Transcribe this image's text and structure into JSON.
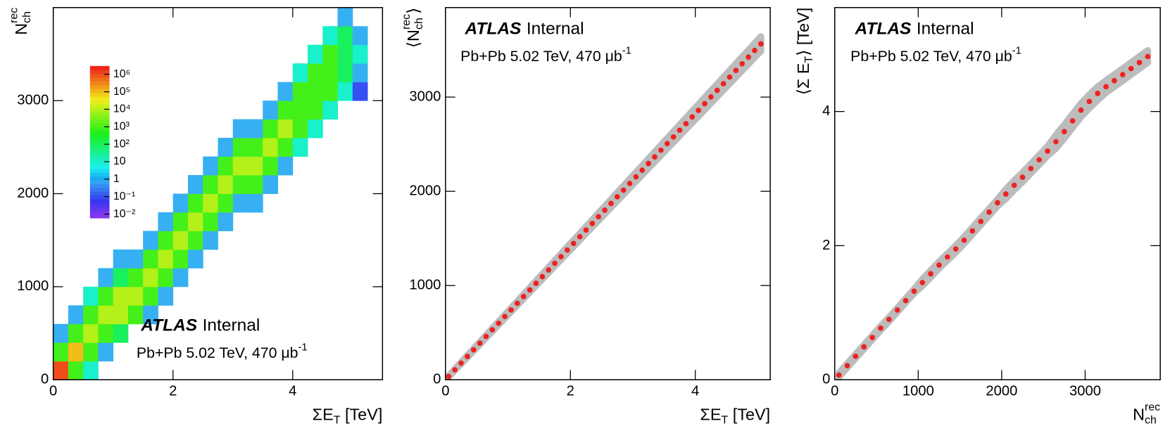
{
  "chart_data": [
    {
      "type": "hist2d",
      "xlabel": [
        {
          "t": "ΣE"
        },
        {
          "sub": "T"
        },
        {
          "t": " [TeV]"
        }
      ],
      "ylabel": [
        {
          "t": "N"
        },
        {
          "sup": "rec",
          "sub": "ch"
        }
      ],
      "xlim": [
        0,
        5.5
      ],
      "xticks": [
        0,
        2,
        4
      ],
      "ylim": [
        0,
        4000
      ],
      "yticks": [
        0,
        1000,
        2000,
        3000
      ],
      "x_bins": [
        0,
        0.25,
        0.5,
        0.75,
        1,
        1.25,
        1.5,
        1.75,
        2,
        2.25,
        2.5,
        2.75,
        3,
        3.25,
        3.5,
        3.75,
        4,
        4.25,
        4.5,
        4.75,
        5,
        5.25
      ],
      "y_bins": [
        0,
        200,
        400,
        600,
        800,
        1000,
        1200,
        1400,
        1600,
        1800,
        2000,
        2200,
        2400,
        2600,
        2800,
        3000,
        3200,
        3400,
        3600,
        3800,
        4000
      ],
      "z": [
        [
          1000000,
          1000,
          10,
          null,
          null,
          null,
          null,
          null,
          null,
          null,
          null,
          null,
          null,
          null,
          null,
          null,
          null,
          null,
          null,
          null,
          null
        ],
        [
          1000,
          100000,
          1000,
          1,
          null,
          null,
          null,
          null,
          null,
          null,
          null,
          null,
          null,
          null,
          null,
          null,
          null,
          null,
          null,
          null,
          null
        ],
        [
          1,
          1000,
          10000,
          1000,
          100,
          null,
          null,
          null,
          null,
          null,
          null,
          null,
          null,
          null,
          null,
          null,
          null,
          null,
          null,
          null,
          null
        ],
        [
          null,
          1,
          1000,
          10000,
          10000,
          1000,
          1,
          null,
          null,
          null,
          null,
          null,
          null,
          null,
          null,
          null,
          null,
          null,
          null,
          null,
          null
        ],
        [
          null,
          null,
          10,
          1000,
          10000,
          10000,
          1000,
          1,
          null,
          null,
          null,
          null,
          null,
          null,
          null,
          null,
          null,
          null,
          null,
          null,
          null
        ],
        [
          null,
          null,
          null,
          1,
          100,
          1000,
          10000,
          1000,
          1,
          null,
          null,
          null,
          null,
          null,
          null,
          null,
          null,
          null,
          null,
          null,
          null
        ],
        [
          null,
          null,
          null,
          null,
          1,
          1,
          1000,
          10000,
          1000,
          1,
          null,
          null,
          null,
          null,
          null,
          null,
          null,
          null,
          null,
          null,
          null
        ],
        [
          null,
          null,
          null,
          null,
          null,
          null,
          1,
          1000,
          10000,
          1000,
          1,
          null,
          null,
          null,
          null,
          null,
          null,
          null,
          null,
          null,
          null
        ],
        [
          null,
          null,
          null,
          null,
          null,
          null,
          null,
          1,
          1000,
          10000,
          1000,
          1,
          null,
          null,
          null,
          null,
          null,
          null,
          null,
          null,
          null
        ],
        [
          null,
          null,
          null,
          null,
          null,
          null,
          null,
          null,
          1,
          1000,
          10000,
          1000,
          1,
          1,
          null,
          null,
          null,
          null,
          null,
          null,
          null
        ],
        [
          null,
          null,
          null,
          null,
          null,
          null,
          null,
          null,
          null,
          1,
          1000,
          10000,
          1000,
          1000,
          1,
          null,
          null,
          null,
          null,
          null,
          null
        ],
        [
          null,
          null,
          null,
          null,
          null,
          null,
          null,
          null,
          null,
          null,
          1,
          1000,
          10000,
          10000,
          1000,
          1,
          null,
          null,
          null,
          null,
          null
        ],
        [
          null,
          null,
          null,
          null,
          null,
          null,
          null,
          null,
          null,
          null,
          null,
          1,
          1000,
          1000,
          10000,
          1000,
          10,
          null,
          null,
          null,
          null
        ],
        [
          null,
          null,
          null,
          null,
          null,
          null,
          null,
          null,
          null,
          null,
          null,
          null,
          1,
          1,
          1000,
          10000,
          1000,
          10,
          null,
          null,
          null
        ],
        [
          null,
          null,
          null,
          null,
          null,
          null,
          null,
          null,
          null,
          null,
          null,
          null,
          null,
          null,
          1,
          1000,
          1000,
          1000,
          10,
          null,
          null
        ],
        [
          null,
          null,
          null,
          null,
          null,
          null,
          null,
          null,
          null,
          null,
          null,
          null,
          null,
          null,
          null,
          1,
          1000,
          1000,
          1000,
          10,
          0.1
        ],
        [
          null,
          null,
          null,
          null,
          null,
          null,
          null,
          null,
          null,
          null,
          null,
          null,
          null,
          null,
          null,
          null,
          10,
          1000,
          1000,
          100,
          1
        ],
        [
          null,
          null,
          null,
          null,
          null,
          null,
          null,
          null,
          null,
          null,
          null,
          null,
          null,
          null,
          null,
          null,
          null,
          10,
          1000,
          100,
          10
        ],
        [
          null,
          null,
          null,
          null,
          null,
          null,
          null,
          null,
          null,
          null,
          null,
          null,
          null,
          null,
          null,
          null,
          null,
          null,
          10,
          100,
          1
        ],
        [
          null,
          null,
          null,
          null,
          null,
          null,
          null,
          null,
          null,
          null,
          null,
          null,
          null,
          null,
          null,
          null,
          null,
          null,
          null,
          1,
          null
        ]
      ],
      "zscale": "log",
      "zlim": [
        0.006,
        3000000
      ],
      "zticks": [
        {
          "value": 0.01,
          "label": "10⁻²"
        },
        {
          "value": 0.1,
          "label": "10⁻¹"
        },
        1,
        10,
        {
          "value": 100,
          "label": "10²"
        },
        {
          "value": 1000,
          "label": "10³"
        },
        {
          "value": 10000,
          "label": "10⁴"
        },
        {
          "value": 100000,
          "label": "10⁵"
        },
        {
          "value": 1000000,
          "label": "10⁶"
        }
      ],
      "annotation": {
        "experiment": "ATLAS",
        "status": "Internal",
        "text": "Pb+Pb 5.02 TeV, 470 μb",
        "sup": "-1"
      }
    },
    {
      "type": "scatter",
      "xlabel": [
        {
          "t": "ΣE"
        },
        {
          "sub": "T"
        },
        {
          "t": " [TeV]"
        }
      ],
      "ylabel": [
        {
          "t": "⟨N"
        },
        {
          "sup": "rec",
          "sub": "ch"
        },
        {
          "t": "⟩"
        }
      ],
      "xlim": [
        0,
        5.2
      ],
      "xticks": [
        0,
        2,
        4
      ],
      "ylim": [
        0,
        3950
      ],
      "yticks": [
        0,
        1000,
        2000,
        3000
      ],
      "x": [
        0.05,
        0.15,
        0.25,
        0.35,
        0.45,
        0.55,
        0.65,
        0.75,
        0.85,
        0.95,
        1.05,
        1.15,
        1.25,
        1.35,
        1.45,
        1.55,
        1.65,
        1.75,
        1.85,
        1.95,
        2.05,
        2.15,
        2.25,
        2.35,
        2.45,
        2.55,
        2.65,
        2.75,
        2.85,
        2.95,
        3.05,
        3.15,
        3.25,
        3.35,
        3.45,
        3.55,
        3.65,
        3.75,
        3.85,
        3.95,
        4.05,
        4.15,
        4.25,
        4.35,
        4.45,
        4.55,
        4.65,
        4.75,
        4.85,
        4.95,
        5.05
      ],
      "series": [
        {
          "color": "#ee2222",
          "error_color": "#bcbcbc",
          "values": [
            35,
            106,
            177,
            247,
            318,
            388,
            459,
            530,
            600,
            671,
            741,
            812,
            883,
            953,
            1024,
            1094,
            1165,
            1236,
            1306,
            1377,
            1447,
            1518,
            1589,
            1659,
            1730,
            1800,
            1871,
            1942,
            2012,
            2083,
            2153,
            2224,
            2295,
            2365,
            2436,
            2506,
            2577,
            2648,
            2718,
            2789,
            2859,
            2930,
            3001,
            3071,
            3142,
            3212,
            3283,
            3354,
            3424,
            3495,
            3565
          ],
          "errors": [
            6,
            7,
            9,
            10,
            11,
            13,
            14,
            16,
            17,
            18,
            20,
            21,
            23,
            24,
            25,
            27,
            28,
            30,
            31,
            33,
            34,
            35,
            37,
            38,
            40,
            41,
            42,
            44,
            45,
            47,
            48,
            49,
            51,
            52,
            54,
            55,
            57,
            58,
            59,
            61,
            62,
            64,
            65,
            66,
            68,
            69,
            71,
            72,
            73,
            75,
            76
          ]
        }
      ],
      "annotation": {
        "experiment": "ATLAS",
        "status": "Internal",
        "text": "Pb+Pb 5.02 TeV, 470 μb",
        "sup": "-1"
      }
    },
    {
      "type": "scatter",
      "xlabel": [
        {
          "t": "N"
        },
        {
          "sup": "rec",
          "sub": "ch"
        }
      ],
      "ylabel": [
        {
          "t": "⟨Σ E"
        },
        {
          "sub": "T"
        },
        {
          "t": "⟩ [TeV]"
        }
      ],
      "xlim": [
        0,
        3900
      ],
      "xticks": [
        0,
        1000,
        2000,
        3000
      ],
      "ylim": [
        0,
        5.55
      ],
      "yticks": [
        0,
        2,
        4
      ],
      "x": [
        50,
        150,
        250,
        350,
        450,
        550,
        650,
        750,
        850,
        950,
        1050,
        1150,
        1250,
        1350,
        1450,
        1550,
        1650,
        1750,
        1850,
        1950,
        2050,
        2150,
        2250,
        2350,
        2450,
        2550,
        2650,
        2750,
        2850,
        2950,
        3050,
        3150,
        3250,
        3350,
        3450,
        3550,
        3650,
        3750
      ],
      "series": [
        {
          "color": "#ee2222",
          "error_color": "#bcbcbc",
          "values": [
            0.07,
            0.21,
            0.35,
            0.49,
            0.63,
            0.77,
            0.9,
            1.04,
            1.18,
            1.32,
            1.45,
            1.58,
            1.71,
            1.83,
            1.95,
            2.08,
            2.22,
            2.36,
            2.5,
            2.64,
            2.77,
            2.9,
            3.02,
            3.15,
            3.28,
            3.41,
            3.55,
            3.7,
            3.86,
            4.02,
            4.15,
            4.27,
            4.37,
            4.46,
            4.55,
            4.64,
            4.73,
            4.82
          ],
          "errors": [
            0.03,
            0.03,
            0.03,
            0.03,
            0.03,
            0.03,
            0.03,
            0.03,
            0.03,
            0.03,
            0.05,
            0.05,
            0.05,
            0.05,
            0.05,
            0.05,
            0.05,
            0.05,
            0.05,
            0.05,
            0.07,
            0.07,
            0.07,
            0.07,
            0.07,
            0.07,
            0.1,
            0.1,
            0.1,
            0.1,
            0.1,
            0.1,
            0.09,
            0.09,
            0.09,
            0.09,
            0.09,
            0.09
          ]
        }
      ],
      "annotation": {
        "experiment": "ATLAS",
        "status": "Internal",
        "text": "Pb+Pb 5.02 TeV, 470 μb",
        "sup": "-1"
      }
    }
  ]
}
